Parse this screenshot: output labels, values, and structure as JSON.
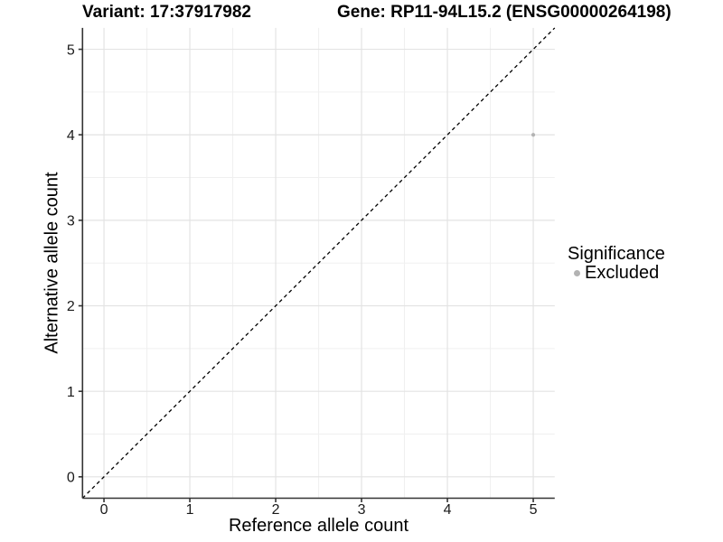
{
  "chart_data": {
    "type": "scatter",
    "titles": {
      "variant": "Variant: 17:37917982",
      "gene": "Gene: RP11-94L15.2 (ENSG00000264198)"
    },
    "xlabel": "Reference allele count",
    "ylabel": "Alternative allele count",
    "xlim": [
      -0.25,
      5.25
    ],
    "ylim": [
      -0.25,
      5.25
    ],
    "x_ticks": [
      0,
      1,
      2,
      3,
      4,
      5
    ],
    "y_ticks": [
      0,
      1,
      2,
      3,
      4,
      5
    ],
    "grid": "major and minor gridlines, light gray on white panel",
    "identity_line": {
      "slope": 1,
      "intercept": 0,
      "style": "dashed"
    },
    "points": [
      {
        "x": 5,
        "y": 4,
        "significance": "Excluded"
      }
    ],
    "legend": {
      "title": "Significance",
      "position": "right",
      "entries": [
        {
          "label": "Excluded",
          "color": "#b3b3b3",
          "marker": "circle"
        }
      ]
    }
  },
  "colors": {
    "background": "#ffffff",
    "grid_major": "#e3e3e3",
    "grid_minor": "#f0f0f0",
    "axis_line": "#333333",
    "tick_text": "#1a1a1a",
    "title_text": "#000000",
    "dashed_line": "#000000",
    "excluded_point": "#b3b3b3"
  }
}
